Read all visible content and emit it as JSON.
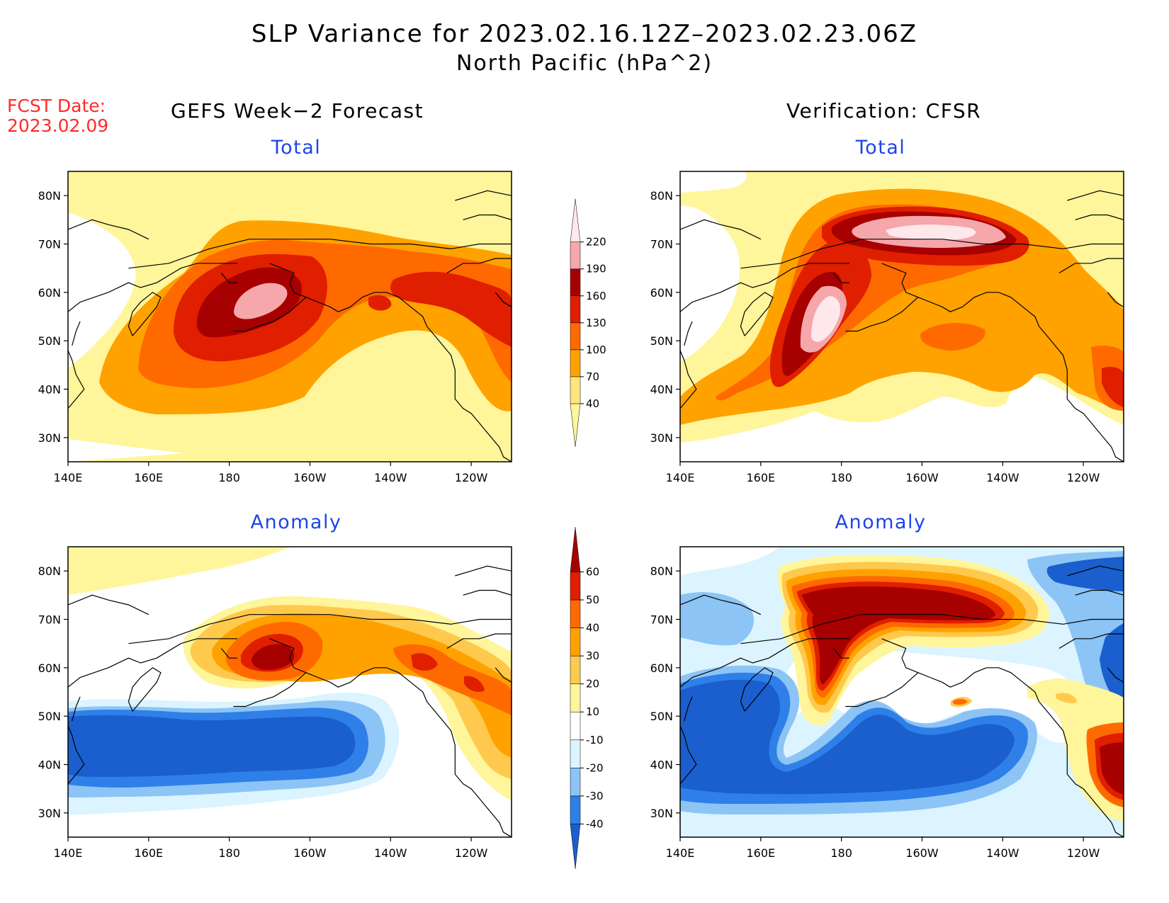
{
  "title": "SLP Variance for 2023.02.16.12Z–2023.02.23.06Z",
  "subtitle": "North Pacific (hPa^2)",
  "fcst_label": "FCST Date:",
  "fcst_date": "2023.02.09",
  "columns": {
    "left": "GEFS Week−2 Forecast",
    "right": "Verification: CFSR"
  },
  "panel_titles": {
    "total": "Total",
    "anomaly": "Anomaly"
  },
  "axes": {
    "lon_ticks": [
      "140E",
      "160E",
      "180",
      "160W",
      "140W",
      "120W"
    ],
    "lat_ticks": [
      "80N",
      "70N",
      "60N",
      "50N",
      "40N",
      "30N"
    ]
  },
  "colorbars": {
    "total": {
      "levels": [
        "40",
        "70",
        "100",
        "130",
        "160",
        "190",
        "220"
      ],
      "colors": [
        "#fff59a",
        "#ffe57a",
        "#ffa200",
        "#ff6a00",
        "#e01e00",
        "#a60000",
        "#f5a7ab",
        "#ffe8ec"
      ]
    },
    "anomaly": {
      "levels": [
        "-40",
        "-30",
        "-20",
        "-10",
        "10",
        "20",
        "30",
        "40",
        "50",
        "60"
      ],
      "colors": [
        "#1a5fcd",
        "#2f7fe8",
        "#8cc4f5",
        "#dbf4ff",
        "#ffffff",
        "#fff59a",
        "#ffc94d",
        "#ffa200",
        "#ff6a00",
        "#e01e00",
        "#a60000"
      ]
    }
  },
  "chart_data": {
    "type": "heatmap",
    "region": "North Pacific",
    "lon_range": [
      "140E",
      "110W"
    ],
    "lat_range": [
      "25N",
      "85N"
    ],
    "panels": [
      {
        "column": "GEFS Week−2 Forecast",
        "title": "Total",
        "max_contour": 190,
        "max_center": {
          "lat": 57,
          "lon": "175W"
        }
      },
      {
        "column": "Verification: CFSR",
        "title": "Total",
        "max_contour": 220,
        "max_center": {
          "lat": 72,
          "lon": "160W"
        }
      },
      {
        "column": "GEFS Week−2 Forecast",
        "title": "Anomaly",
        "max_contour": 60,
        "max_center": {
          "lat": 61,
          "lon": "170W"
        },
        "min_contour": -40,
        "min_center": {
          "lat": 44,
          "lon": "170W"
        }
      },
      {
        "column": "Verification: CFSR",
        "title": "Anomaly",
        "max_contour": 60,
        "max_center": {
          "lat": 72,
          "lon": "160W"
        },
        "min_contour": -40,
        "min_center": {
          "lat": 43,
          "lon": "165W"
        }
      }
    ]
  }
}
